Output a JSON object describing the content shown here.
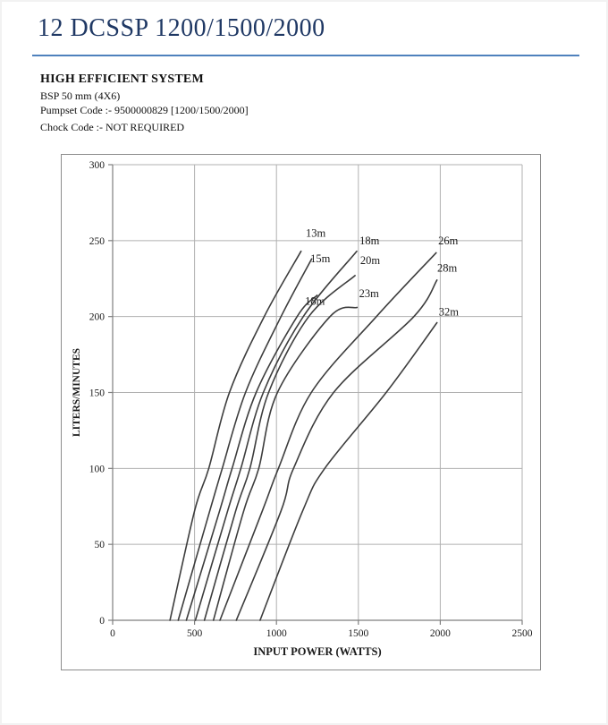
{
  "page": {
    "title": "12 DCSSP 1200/1500/2000",
    "header": {
      "line1": "HIGH EFFICIENT SYSTEM",
      "line2": "BSP 50 mm (4X6)",
      "line3": "Pumpset Code :-  9500000829 [1200/1500/2000]",
      "line4": "Chock Code :-  NOT REQUIRED"
    },
    "colors": {
      "title_text": "#1F3864",
      "rule": "#4F81BD",
      "body_text": "#111111",
      "curve": "#3d3d3d",
      "grid": "#b0b0b0",
      "axis": "#7f7f7f",
      "tick_text": "#1a1a1a",
      "frame": "#8c8c8c"
    }
  },
  "chart_data": {
    "type": "line",
    "title": "",
    "xlabel": "INPUT POWER (WATTS)",
    "ylabel": "LITERS/MINUTES",
    "xlim": [
      0,
      2500
    ],
    "ylim": [
      0,
      300
    ],
    "xticks": [
      0,
      500,
      1000,
      1500,
      2000,
      2500
    ],
    "yticks": [
      0,
      50,
      100,
      150,
      200,
      250,
      300
    ],
    "grid": true,
    "legend_position": "inline-labels",
    "series": [
      {
        "name": "13m",
        "points": [
          [
            350,
            0
          ],
          [
            500,
            72
          ],
          [
            587,
            100
          ],
          [
            713,
            150
          ],
          [
            925,
            200
          ],
          [
            1150,
            243
          ]
        ],
        "label_at": [
          1240,
          255
        ]
      },
      {
        "name": "15m",
        "points": [
          [
            400,
            0
          ],
          [
            593,
            72
          ],
          [
            669,
            100
          ],
          [
            811,
            150
          ],
          [
            1028,
            200
          ],
          [
            1215,
            238
          ]
        ],
        "label_at": [
          1268,
          238
        ]
      },
      {
        "name": "18m",
        "points": [
          [
            450,
            0
          ],
          [
            653,
            72
          ],
          [
            729,
            100
          ],
          [
            876,
            150
          ],
          [
            1126,
            200
          ],
          [
            1248,
            214
          ]
        ],
        "label_at": [
          1235,
          210
        ]
      },
      {
        "name": "18m",
        "points": [
          [
            505,
            0
          ],
          [
            702,
            72
          ],
          [
            783,
            100
          ],
          [
            920,
            150
          ],
          [
            1164,
            200
          ],
          [
            1490,
            243
          ]
        ],
        "label_at": [
          1568,
          250
        ]
      },
      {
        "name": "20m",
        "points": [
          [
            560,
            0
          ],
          [
            751,
            72
          ],
          [
            838,
            100
          ],
          [
            952,
            150
          ],
          [
            1197,
            200
          ],
          [
            1480,
            227
          ]
        ],
        "label_at": [
          1572,
          237
        ]
      },
      {
        "name": "23m",
        "points": [
          [
            615,
            0
          ],
          [
            800,
            72
          ],
          [
            892,
            100
          ],
          [
            1006,
            150
          ],
          [
            1327,
            200
          ],
          [
            1492,
            206
          ]
        ],
        "label_at": [
          1565,
          215
        ]
      },
      {
        "name": "26m",
        "points": [
          [
            655,
            0
          ],
          [
            914,
            72
          ],
          [
            1012,
            100
          ],
          [
            1213,
            150
          ],
          [
            1610,
            200
          ],
          [
            1975,
            242
          ]
        ],
        "label_at": [
          2048,
          250
        ]
      },
      {
        "name": "28m",
        "points": [
          [
            755,
            0
          ],
          [
            1028,
            72
          ],
          [
            1104,
            100
          ],
          [
            1349,
            150
          ],
          [
            1839,
            200
          ],
          [
            1980,
            224
          ]
        ],
        "label_at": [
          2042,
          232
        ]
      },
      {
        "name": "32m",
        "points": [
          [
            900,
            0
          ],
          [
            1160,
            72
          ],
          [
            1295,
            100
          ],
          [
            1670,
            150
          ],
          [
            1980,
            196
          ]
        ],
        "label_at": [
          2052,
          203
        ]
      }
    ]
  }
}
